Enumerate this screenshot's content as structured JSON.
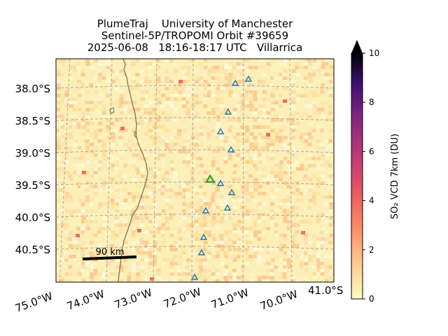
{
  "title_lines": [
    "PlumeTraj    University of Manchester",
    "Sentinel-5P/TROPOMI Orbit #39659",
    "2025-06-08   18:16-18:17 UTC   Villarrica"
  ],
  "map": {
    "lat_labels": [
      "38.0°S",
      "38.5°S",
      "39.0°S",
      "39.5°S",
      "40.0°S",
      "40.5°S"
    ],
    "lon_labels": [
      "75.0°W",
      "74.0°W",
      "73.0°W",
      "72.0°W",
      "71.0°W",
      "70.0°W"
    ],
    "corner_label": "41.0°S",
    "scale_bar_label": "90 km",
    "volcano_color": "#2ca02c",
    "station_color": "#1f77b4",
    "coast_color": "#7a7a5a"
  },
  "colorbar": {
    "label": "SO₂ VCD 7km (DU)",
    "ticks": [
      "0",
      "2",
      "4",
      "6",
      "8",
      "10"
    ],
    "min": 0,
    "max": 10,
    "colormap": "magma_r"
  }
}
